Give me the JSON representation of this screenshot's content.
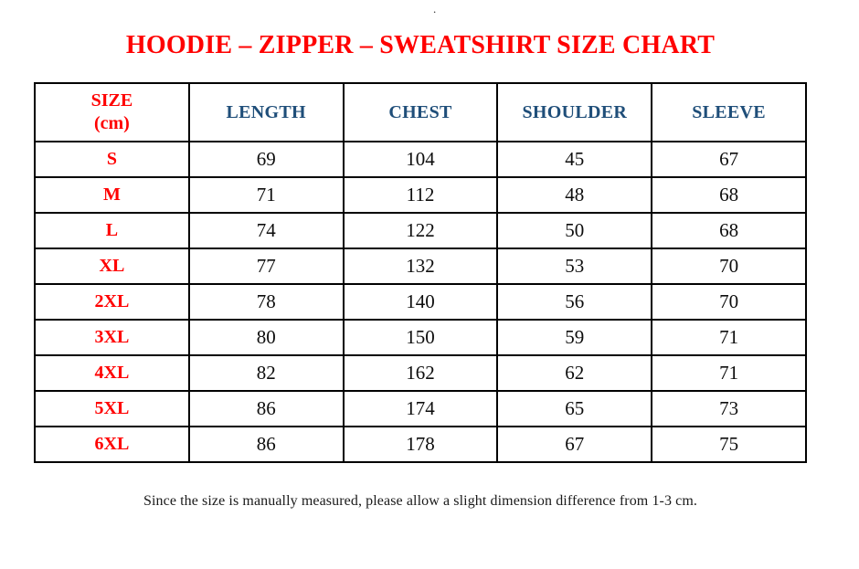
{
  "page": {
    "stray_dot": "."
  },
  "title": "HOODIE – ZIPPER – SWEATSHIRT SIZE CHART",
  "colors": {
    "title_red": "#ff0000",
    "header_blue": "#1f4e79",
    "size_label_red": "#ff0000",
    "value_color": "#0d0d0d",
    "border_color": "#000000"
  },
  "table": {
    "header": {
      "size_line1": "SIZE",
      "size_line2": "(cm)",
      "cols": [
        "LENGTH",
        "CHEST",
        "SHOULDER",
        "SLEEVE"
      ]
    },
    "rows": [
      {
        "size": "S",
        "length": "69",
        "chest": "104",
        "shoulder": "45",
        "sleeve": "67"
      },
      {
        "size": "M",
        "length": "71",
        "chest": "112",
        "shoulder": "48",
        "sleeve": "68"
      },
      {
        "size": "L",
        "length": "74",
        "chest": "122",
        "shoulder": "50",
        "sleeve": "68"
      },
      {
        "size": "XL",
        "length": "77",
        "chest": "132",
        "shoulder": "53",
        "sleeve": "70"
      },
      {
        "size": "2XL",
        "length": "78",
        "chest": "140",
        "shoulder": "56",
        "sleeve": "70"
      },
      {
        "size": "3XL",
        "length": "80",
        "chest": "150",
        "shoulder": "59",
        "sleeve": "71"
      },
      {
        "size": "4XL",
        "length": "82",
        "chest": "162",
        "shoulder": "62",
        "sleeve": "71"
      },
      {
        "size": "5XL",
        "length": "86",
        "chest": "174",
        "shoulder": "65",
        "sleeve": "73"
      },
      {
        "size": "6XL",
        "length": "86",
        "chest": "178",
        "shoulder": "67",
        "sleeve": "75"
      }
    ]
  },
  "footer": {
    "note": "Since the size is manually measured, please allow a slight dimension difference from 1-3 cm."
  }
}
